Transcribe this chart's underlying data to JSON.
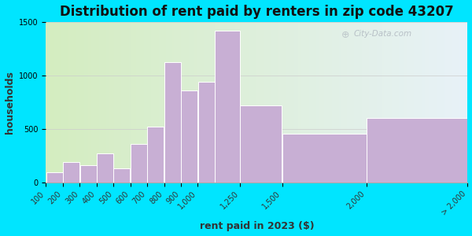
{
  "title": "Distribution of rent paid by renters in zip code 43207",
  "xlabel": "rent paid in 2023 ($)",
  "ylabel": "households",
  "bar_lefts": [
    100,
    200,
    300,
    400,
    500,
    600,
    700,
    800,
    900,
    1000,
    1100,
    1250,
    1500,
    2000
  ],
  "bar_widths": [
    100,
    100,
    100,
    100,
    100,
    100,
    100,
    100,
    100,
    100,
    150,
    250,
    500,
    600
  ],
  "bar_values": [
    90,
    190,
    155,
    270,
    130,
    360,
    520,
    1120,
    860,
    940,
    1420,
    720,
    450,
    600
  ],
  "bar_color": "#c8afd4",
  "bar_edge_color": "#ffffff",
  "xlim": [
    100,
    2600
  ],
  "ylim": [
    0,
    1500
  ],
  "yticks": [
    0,
    500,
    1000,
    1500
  ],
  "xtick_positions": [
    100,
    200,
    300,
    400,
    500,
    600,
    700,
    800,
    900,
    1000,
    1250,
    1500,
    2000,
    2600
  ],
  "xtick_labels": [
    "100",
    "200",
    "300",
    "400",
    "500",
    "600",
    "700",
    "800",
    "900",
    "1,000",
    "1,250",
    "1,500",
    "2,000",
    "> 2,000"
  ],
  "bg_outer": "#00e5ff",
  "bg_plot_color_left": "#d4edc0",
  "bg_plot_color_right": "#e8f2f8",
  "title_fontsize": 12,
  "axis_label_fontsize": 9,
  "tick_fontsize": 7,
  "watermark_text": "City-Data.com"
}
